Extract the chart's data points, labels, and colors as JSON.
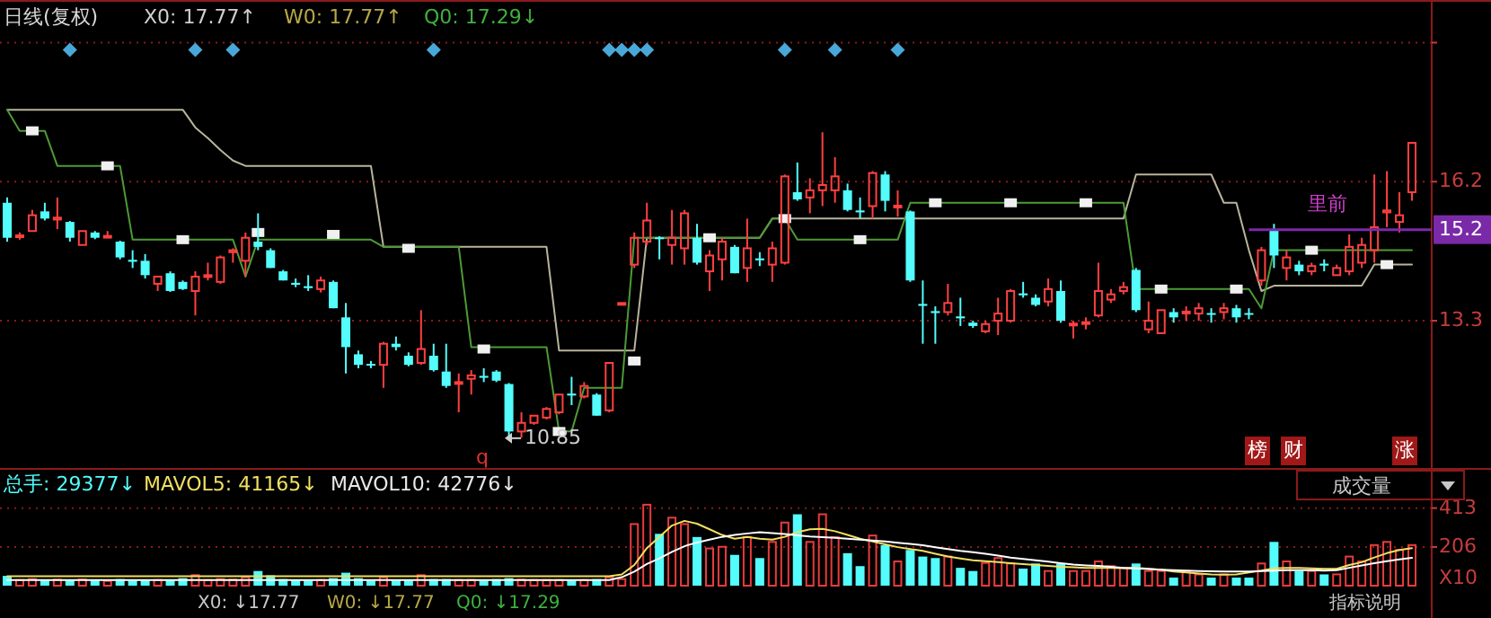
{
  "chart_data": [
    {
      "type": "candlestick",
      "title": "日线(复权)",
      "categories": [
        null,
        null,
        null,
        null,
        null,
        null,
        null,
        null,
        null,
        null,
        null,
        null,
        null,
        null,
        null,
        null,
        null,
        null,
        null,
        null,
        null,
        null,
        null,
        null,
        null,
        null,
        null,
        null,
        null,
        null,
        null,
        null,
        null,
        null,
        null,
        null,
        null,
        null,
        null,
        null,
        null,
        null,
        null,
        null,
        null,
        null,
        null,
        null,
        null,
        null,
        null,
        null,
        null,
        null,
        null,
        null,
        null,
        null,
        null,
        null,
        null,
        null,
        null,
        null,
        null,
        null,
        null,
        null,
        null,
        null,
        null,
        null,
        null,
        null,
        null,
        null,
        null,
        null,
        null,
        null,
        null,
        null,
        null,
        null,
        null,
        null,
        null,
        null,
        null,
        null,
        null,
        null,
        null,
        null,
        null,
        null,
        null,
        null,
        null,
        null,
        null,
        null,
        null,
        null,
        null,
        null,
        null,
        null,
        null,
        null,
        null,
        null,
        null
      ],
      "ohlc": [
        [
          15.76,
          15.87,
          14.95,
          15.03
        ],
        [
          15.06,
          15.14,
          14.99,
          15.08
        ],
        [
          15.17,
          15.61,
          15.14,
          15.5
        ],
        [
          15.58,
          15.76,
          15.39,
          15.43
        ],
        [
          15.41,
          15.87,
          15.21,
          15.45
        ],
        [
          15.36,
          15.38,
          14.95,
          15.03
        ],
        [
          14.88,
          15.2,
          14.85,
          15.17
        ],
        [
          15.14,
          15.17,
          15.0,
          15.03
        ],
        [
          15.05,
          15.17,
          15.03,
          15.07
        ],
        [
          14.95,
          14.97,
          14.58,
          14.62
        ],
        [
          14.57,
          14.77,
          14.4,
          14.53
        ],
        [
          14.55,
          14.69,
          14.18,
          14.25
        ],
        [
          14.07,
          14.25,
          13.92,
          14.22
        ],
        [
          14.29,
          14.33,
          13.9,
          13.92
        ],
        [
          14.11,
          14.14,
          13.94,
          13.96
        ],
        [
          13.92,
          14.33,
          13.41,
          14.22
        ],
        [
          14.23,
          14.51,
          14.14,
          14.25
        ],
        [
          14.11,
          14.66,
          14.07,
          14.62
        ],
        [
          14.73,
          14.81,
          14.51,
          14.77
        ],
        [
          14.55,
          15.14,
          14.22,
          15.03
        ],
        [
          14.95,
          15.54,
          14.77,
          14.84
        ],
        [
          14.77,
          14.81,
          14.4,
          14.4
        ],
        [
          14.33,
          14.36,
          14.14,
          14.14
        ],
        [
          14.09,
          14.18,
          14.0,
          14.05
        ],
        [
          14.02,
          14.25,
          13.92,
          13.98
        ],
        [
          13.96,
          14.22,
          13.89,
          14.14
        ],
        [
          14.11,
          14.14,
          13.56,
          13.56
        ],
        [
          13.37,
          13.67,
          12.2,
          12.75
        ],
        [
          12.6,
          12.68,
          12.31,
          12.38
        ],
        [
          12.4,
          12.46,
          12.31,
          12.37
        ],
        [
          12.38,
          12.86,
          11.9,
          12.82
        ],
        [
          12.82,
          12.97,
          12.68,
          12.75
        ],
        [
          12.57,
          12.64,
          12.35,
          12.38
        ],
        [
          12.42,
          13.52,
          12.38,
          12.71
        ],
        [
          12.57,
          12.82,
          12.24,
          12.27
        ],
        [
          12.24,
          12.82,
          11.9,
          11.94
        ],
        [
          12.0,
          12.2,
          11.39,
          12.02
        ],
        [
          12.09,
          12.27,
          11.76,
          12.16
        ],
        [
          12.15,
          12.31,
          12.02,
          12.11
        ],
        [
          12.24,
          12.27,
          12.02,
          12.05
        ],
        [
          11.98,
          12.0,
          10.85,
          10.99
        ],
        [
          10.99,
          11.39,
          10.86,
          11.17
        ],
        [
          11.17,
          11.35,
          11.13,
          11.32
        ],
        [
          11.28,
          11.5,
          11.24,
          11.46
        ],
        [
          11.39,
          11.79,
          11.35,
          11.76
        ],
        [
          11.78,
          12.13,
          11.54,
          11.74
        ],
        [
          11.72,
          12.02,
          11.68,
          11.94
        ],
        [
          11.76,
          11.79,
          11.32,
          11.32
        ],
        [
          11.43,
          12.42,
          11.39,
          12.42
        ],
        [
          13.66,
          13.68,
          13.65,
          13.67
        ],
        [
          14.47,
          15.14,
          14.4,
          15.03
        ],
        [
          14.95,
          15.76,
          14.88,
          15.39
        ],
        [
          15.04,
          15.06,
          14.58,
          15.0
        ],
        [
          14.88,
          15.61,
          14.47,
          15.03
        ],
        [
          14.81,
          15.61,
          14.47,
          15.54
        ],
        [
          15.03,
          15.32,
          14.47,
          14.51
        ],
        [
          14.33,
          14.77,
          13.92,
          14.66
        ],
        [
          14.58,
          15.03,
          14.14,
          14.95
        ],
        [
          14.84,
          14.88,
          14.29,
          14.29
        ],
        [
          14.4,
          15.43,
          14.11,
          14.81
        ],
        [
          14.6,
          14.73,
          14.44,
          14.56
        ],
        [
          14.47,
          14.95,
          14.11,
          14.81
        ],
        [
          14.51,
          16.35,
          14.47,
          16.31
        ],
        [
          15.98,
          16.6,
          15.8,
          15.83
        ],
        [
          15.87,
          16.27,
          15.54,
          16.02
        ],
        [
          16.02,
          17.23,
          15.69,
          16.13
        ],
        [
          16.02,
          16.71,
          15.76,
          16.31
        ],
        [
          16.02,
          16.16,
          15.58,
          15.61
        ],
        [
          15.6,
          15.87,
          15.43,
          15.56
        ],
        [
          15.69,
          16.42,
          15.43,
          16.38
        ],
        [
          16.35,
          16.42,
          15.58,
          15.8
        ],
        [
          15.67,
          16.02,
          15.47,
          15.7
        ],
        [
          15.58,
          15.6,
          14.11,
          14.14
        ],
        [
          13.65,
          14.14,
          12.82,
          13.61
        ],
        [
          13.5,
          13.6,
          12.82,
          13.46
        ],
        [
          13.48,
          14.07,
          13.41,
          13.67
        ],
        [
          13.39,
          13.78,
          13.19,
          13.35
        ],
        [
          13.26,
          13.3,
          13.15,
          13.19
        ],
        [
          13.08,
          13.3,
          13.04,
          13.23
        ],
        [
          13.3,
          13.78,
          13.0,
          13.45
        ],
        [
          13.3,
          13.96,
          13.26,
          13.92
        ],
        [
          13.87,
          14.11,
          13.78,
          13.83
        ],
        [
          13.78,
          13.85,
          13.6,
          13.63
        ],
        [
          13.7,
          14.18,
          13.6,
          13.96
        ],
        [
          13.92,
          14.14,
          13.26,
          13.3
        ],
        [
          13.22,
          13.3,
          12.93,
          13.24
        ],
        [
          13.25,
          13.37,
          13.12,
          13.27
        ],
        [
          13.41,
          14.51,
          13.37,
          13.92
        ],
        [
          13.74,
          13.96,
          13.67,
          13.85
        ],
        [
          13.92,
          14.11,
          13.85,
          14.0
        ],
        [
          14.36,
          14.4,
          13.48,
          13.52
        ],
        [
          13.12,
          13.7,
          13.04,
          13.3
        ],
        [
          13.04,
          13.52,
          13.01,
          13.52
        ],
        [
          13.48,
          13.56,
          13.26,
          13.37
        ],
        [
          13.47,
          13.6,
          13.3,
          13.49
        ],
        [
          13.45,
          13.67,
          13.3,
          13.56
        ],
        [
          13.46,
          13.56,
          13.26,
          13.44
        ],
        [
          13.48,
          13.67,
          13.33,
          13.56
        ],
        [
          13.56,
          13.63,
          13.26,
          13.37
        ],
        [
          13.46,
          13.56,
          13.33,
          13.44
        ],
        [
          14.14,
          14.84,
          14.03,
          14.77
        ],
        [
          15.21,
          15.32,
          14.4,
          14.66
        ],
        [
          14.4,
          14.77,
          14.14,
          14.62
        ],
        [
          14.47,
          14.55,
          14.25,
          14.33
        ],
        [
          14.33,
          14.51,
          14.25,
          14.44
        ],
        [
          14.49,
          14.58,
          14.33,
          14.45
        ],
        [
          14.25,
          14.47,
          14.22,
          14.4
        ],
        [
          14.33,
          15.1,
          14.25,
          14.84
        ],
        [
          14.51,
          15.03,
          14.4,
          14.88
        ],
        [
          14.77,
          16.35,
          14.51,
          15.25
        ],
        [
          15.56,
          16.42,
          15.25,
          15.6
        ],
        [
          15.36,
          15.98,
          15.14,
          15.5
        ],
        [
          15.98,
          17.01,
          15.8,
          17.01
        ]
      ],
      "series": [
        {
          "type": "line",
          "color": "#b8b49c",
          "values": [
            17.7,
            17.7,
            17.7,
            17.7,
            17.7,
            17.7,
            17.7,
            17.7,
            17.7,
            17.7,
            17.7,
            17.7,
            17.7,
            17.7,
            17.7,
            17.33,
            17.11,
            16.86,
            16.64,
            16.53,
            16.53,
            16.53,
            16.53,
            16.53,
            16.53,
            16.53,
            16.53,
            16.53,
            16.53,
            16.53,
            14.84,
            14.84,
            14.84,
            14.84,
            14.84,
            14.84,
            14.84,
            14.84,
            14.84,
            14.84,
            14.84,
            14.84,
            14.84,
            14.84,
            12.68,
            12.68,
            12.68,
            12.68,
            12.68,
            12.68,
            12.68,
            15.03,
            15.03,
            15.03,
            15.03,
            15.03,
            15.03,
            15.03,
            15.03,
            15.03,
            15.03,
            15.43,
            15.43,
            15.43,
            15.43,
            15.43,
            15.43,
            15.43,
            15.43,
            15.43,
            15.43,
            15.43,
            15.43,
            15.43,
            15.43,
            15.43,
            15.43,
            15.43,
            15.43,
            15.43,
            15.43,
            15.43,
            15.43,
            15.43,
            15.43,
            15.43,
            15.43,
            15.43,
            15.43,
            15.43,
            16.35,
            16.35,
            16.35,
            16.35,
            16.35,
            16.35,
            16.35,
            15.76,
            15.76,
            14.77,
            13.92,
            14.03,
            14.03,
            14.03,
            14.03,
            14.03,
            14.03,
            14.03,
            14.03,
            14.47,
            14.47,
            14.47,
            14.47
          ]
        },
        {
          "type": "line",
          "color": "#4e9a36",
          "values": [
            17.7,
            17.26,
            17.26,
            17.26,
            16.53,
            16.53,
            16.53,
            16.53,
            16.53,
            16.53,
            14.99,
            14.99,
            14.99,
            14.99,
            14.99,
            14.99,
            14.99,
            14.99,
            14.99,
            14.22,
            14.99,
            14.99,
            14.99,
            14.99,
            14.99,
            14.99,
            14.99,
            14.99,
            14.99,
            14.99,
            14.84,
            14.84,
            14.84,
            14.84,
            14.84,
            14.84,
            14.84,
            12.75,
            12.75,
            12.75,
            12.75,
            12.75,
            12.75,
            12.75,
            10.99,
            10.99,
            11.9,
            11.9,
            11.9,
            11.9,
            15.03,
            15.03,
            15.03,
            15.03,
            15.03,
            15.03,
            15.03,
            15.03,
            15.03,
            15.03,
            15.03,
            15.43,
            15.43,
            14.99,
            14.99,
            14.99,
            14.99,
            14.99,
            14.99,
            14.99,
            14.99,
            14.99,
            15.76,
            15.76,
            15.76,
            15.76,
            15.76,
            15.76,
            15.76,
            15.76,
            15.76,
            15.76,
            15.76,
            15.76,
            15.76,
            15.76,
            15.76,
            15.76,
            15.76,
            15.76,
            13.96,
            13.96,
            13.96,
            13.96,
            13.96,
            13.96,
            13.96,
            13.96,
            13.96,
            13.96,
            13.56,
            14.77,
            14.77,
            14.77,
            14.77,
            14.77,
            14.77,
            14.77,
            14.77,
            14.77,
            14.77,
            14.77,
            14.77
          ]
        },
        {
          "type": "scatter",
          "marker": "square",
          "color": "#f0f0f0",
          "values": [
            null,
            null,
            17.26,
            null,
            null,
            null,
            null,
            null,
            16.53,
            null,
            null,
            null,
            null,
            null,
            14.99,
            null,
            null,
            null,
            null,
            null,
            15.14,
            null,
            null,
            null,
            null,
            null,
            15.1,
            null,
            null,
            null,
            null,
            null,
            14.81,
            null,
            null,
            null,
            null,
            null,
            12.71,
            null,
            null,
            null,
            null,
            null,
            10.99,
            null,
            null,
            null,
            null,
            null,
            12.46,
            null,
            null,
            null,
            null,
            null,
            15.03,
            null,
            null,
            null,
            null,
            null,
            15.43,
            null,
            null,
            null,
            null,
            null,
            14.99,
            null,
            null,
            null,
            null,
            null,
            15.76,
            null,
            null,
            null,
            null,
            null,
            15.76,
            null,
            null,
            null,
            null,
            null,
            15.76,
            null,
            null,
            null,
            null,
            null,
            13.96,
            null,
            null,
            null,
            null,
            null,
            13.96,
            null,
            null,
            null,
            null,
            null,
            14.77,
            null,
            null,
            null,
            null,
            null,
            14.47,
            null,
            null
          ]
        },
        {
          "type": "scatter",
          "marker": "diamond",
          "color": "#4aa8d8",
          "values": [
            null,
            null,
            null,
            null,
            null,
            18.95,
            null,
            null,
            null,
            null,
            null,
            null,
            null,
            null,
            null,
            18.95,
            null,
            null,
            18.95,
            null,
            null,
            null,
            null,
            null,
            null,
            null,
            null,
            null,
            null,
            null,
            null,
            null,
            null,
            null,
            18.95,
            null,
            null,
            null,
            null,
            null,
            null,
            null,
            null,
            null,
            null,
            null,
            null,
            null,
            18.95,
            18.95,
            18.95,
            18.95,
            null,
            null,
            null,
            null,
            null,
            null,
            null,
            null,
            null,
            null,
            18.95,
            null,
            null,
            null,
            18.95,
            null,
            null,
            null,
            null,
            18.95,
            null,
            null,
            null,
            null,
            null,
            null,
            null,
            null,
            null,
            null,
            null,
            null,
            null,
            null,
            null,
            null,
            null,
            null,
            null,
            null,
            null,
            null,
            null,
            null,
            null,
            null,
            null,
            null,
            null,
            null,
            null,
            null,
            null,
            null,
            null,
            null,
            null,
            null,
            null,
            null,
            null
          ]
        }
      ],
      "ylim": [
        10.21,
        19.97
      ],
      "yticks": [
        {
          "value": 19.1,
          "label": null
        },
        13.3,
        16.2
      ],
      "grid": "y",
      "ref_lines": [
        {
          "axis": "y",
          "value": 15.2,
          "label": "15.2",
          "color": "#7a2aa8"
        }
      ],
      "annotations": [
        "X0: 17.77↑",
        "W0: 17.77↑",
        "Q0: 17.29↓",
        {
          "text": "10.85",
          "y": 10.85
        },
        "q",
        "榜",
        "财",
        "涨",
        "里前"
      ]
    },
    {
      "type": "bar",
      "categories": [
        null,
        null,
        null,
        null,
        null,
        null,
        null,
        null,
        null,
        null,
        null,
        null,
        null,
        null,
        null,
        null,
        null,
        null,
        null,
        null,
        null,
        null,
        null,
        null,
        null,
        null,
        null,
        null,
        null,
        null,
        null,
        null,
        null,
        null,
        null,
        null,
        null,
        null,
        null,
        null,
        null,
        null,
        null,
        null,
        null,
        null,
        null,
        null,
        null,
        null,
        null,
        null,
        null,
        null,
        null,
        null,
        null,
        null,
        null,
        null,
        null,
        null,
        null,
        null,
        null,
        null,
        null,
        null,
        null,
        null,
        null,
        null,
        null,
        null,
        null,
        null,
        null,
        null,
        null,
        null,
        null,
        null,
        null,
        null,
        null,
        null,
        null,
        null,
        null,
        null,
        null,
        null,
        null,
        null,
        null,
        null,
        null,
        null,
        null,
        null,
        null,
        null,
        null,
        null,
        null,
        null,
        null,
        null,
        null,
        null,
        null,
        null,
        null
      ],
      "series": [
        {
          "color": "#e83c3c",
          "values": [
            null,
            30,
            35,
            null,
            32,
            null,
            33,
            null,
            25,
            null,
            null,
            null,
            30,
            null,
            null,
            56,
            30,
            35,
            32,
            45,
            null,
            null,
            null,
            null,
            null,
            30,
            null,
            null,
            null,
            null,
            45,
            null,
            null,
            56,
            null,
            null,
            30,
            30,
            null,
            null,
            null,
            32,
            30,
            30,
            30,
            null,
            30,
            null,
            45,
            35,
            328,
            431,
            null,
            362,
            328,
            null,
            198,
            207,
            null,
            259,
            null,
            233,
            336,
            null,
            233,
            380,
            259,
            null,
            null,
            267,
            null,
            129,
            null,
            null,
            null,
            155,
            null,
            null,
            121,
            147,
            118,
            null,
            null,
            78,
            null,
            78,
            78,
            129,
            104,
            95,
            null,
            78,
            78,
            null,
            78,
            60,
            null,
            60,
            null,
            null,
            118,
            null,
            129,
            null,
            78,
            null,
            60,
            155,
            129,
            216,
            233,
            190,
            216
          ]
        },
        {
          "color": "#54fcfc",
          "values": [
            52,
            null,
            null,
            28,
            null,
            30,
            null,
            28,
            null,
            35,
            30,
            33,
            null,
            28,
            40,
            null,
            null,
            null,
            null,
            null,
            78,
            55,
            35,
            30,
            28,
            null,
            40,
            69,
            40,
            30,
            null,
            30,
            28,
            null,
            35,
            35,
            null,
            null,
            28,
            35,
            40,
            null,
            null,
            null,
            null,
            30,
            null,
            35,
            null,
            null,
            null,
            null,
            276,
            null,
            null,
            259,
            null,
            null,
            164,
            null,
            147,
            null,
            null,
            380,
            null,
            null,
            null,
            173,
            104,
            null,
            216,
            null,
            190,
            155,
            147,
            null,
            95,
            78,
            null,
            null,
            null,
            91,
            118,
            null,
            118,
            null,
            null,
            null,
            null,
            null,
            118,
            null,
            null,
            43,
            null,
            null,
            43,
            null,
            43,
            43,
            null,
            233,
            null,
            78,
            null,
            60,
            null,
            null,
            null,
            null,
            null,
            null,
            null
          ]
        },
        {
          "type": "line",
          "color": "#f0e060",
          "values": [
            50,
            50,
            50,
            50,
            50,
            50,
            50,
            50,
            50,
            50,
            50,
            50,
            50,
            50,
            50,
            50,
            50,
            50,
            50,
            50,
            50,
            50,
            50,
            50,
            50,
            50,
            50,
            50,
            50,
            50,
            50,
            50,
            50,
            50,
            50,
            50,
            50,
            50,
            50,
            50,
            50,
            50,
            50,
            50,
            50,
            50,
            50,
            50,
            50,
            60,
            110,
            200,
            260,
            320,
            345,
            330,
            300,
            270,
            250,
            259,
            250,
            245,
            260,
            285,
            300,
            302,
            290,
            270,
            250,
            235,
            220,
            205,
            195,
            185,
            170,
            155,
            145,
            135,
            130,
            125,
            120,
            115,
            110,
            105,
            100,
            98,
            95,
            95,
            95,
            93,
            95,
            90,
            85,
            75,
            70,
            65,
            60,
            58,
            60,
            70,
            80,
            92,
            95,
            95,
            92,
            90,
            90,
            110,
            125,
            150,
            173,
            190,
            200
          ]
        },
        {
          "type": "line",
          "color": "#ffffff",
          "values": [
            30,
            30,
            30,
            30,
            30,
            30,
            30,
            30,
            30,
            30,
            30,
            30,
            30,
            30,
            30,
            30,
            30,
            30,
            30,
            30,
            30,
            30,
            30,
            30,
            30,
            30,
            30,
            30,
            30,
            30,
            30,
            30,
            30,
            30,
            30,
            30,
            30,
            30,
            30,
            30,
            30,
            30,
            30,
            30,
            30,
            30,
            30,
            30,
            30,
            45,
            75,
            115,
            145,
            180,
            210,
            230,
            245,
            260,
            270,
            278,
            285,
            280,
            275,
            268,
            262,
            258,
            255,
            250,
            245,
            240,
            235,
            228,
            222,
            215,
            205,
            195,
            185,
            178,
            170,
            160,
            150,
            142,
            135,
            128,
            120,
            112,
            108,
            105,
            100,
            95,
            92,
            88,
            85,
            82,
            80,
            78,
            76,
            75,
            75,
            75,
            78,
            80,
            82,
            82,
            82,
            80,
            82,
            95,
            108,
            120,
            130,
            140,
            148
          ]
        }
      ],
      "ylim": [
        0,
        440
      ],
      "yticks": [
        206,
        413
      ],
      "ylabel": "X10",
      "grid": "y",
      "annotations": [
        "总手: 29377↓",
        "MAVOL5: 41165↓",
        "MAVOL10: 42776↓",
        "成交量",
        "X0: ↓17.77",
        "W0: ↓17.77",
        "Q0: ↓17.29",
        "指标说明"
      ]
    }
  ]
}
